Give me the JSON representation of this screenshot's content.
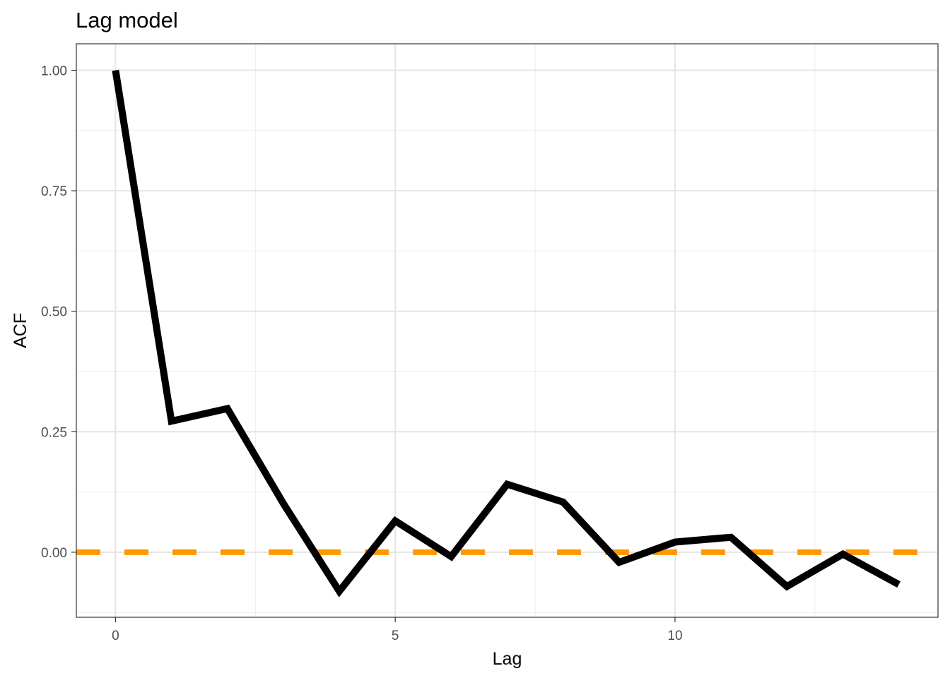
{
  "chart_data": {
    "type": "line",
    "title": "Lag model",
    "xlabel": "Lag",
    "ylabel": "ACF",
    "xlim": [
      -0.7,
      14.7
    ],
    "ylim": [
      -0.135,
      1.055
    ],
    "x_ticks": [
      0,
      5,
      10
    ],
    "x_tick_labels": [
      "0",
      "5",
      "10"
    ],
    "y_ticks": [
      0,
      0.25,
      0.5,
      0.75,
      1
    ],
    "y_tick_labels": [
      "0.00",
      "0.25",
      "0.50",
      "0.75",
      "1.00"
    ],
    "grid": true,
    "legend": "none",
    "series": [
      {
        "color": "#000000",
        "x": [
          0,
          1,
          2,
          3,
          4,
          5,
          6,
          7,
          8,
          9,
          10,
          11,
          12,
          13,
          14
        ],
        "values": [
          1.0,
          0.272,
          0.298,
          0.101,
          -0.081,
          0.065,
          -0.009,
          0.141,
          0.104,
          -0.021,
          0.021,
          0.031,
          -0.071,
          -0.004,
          -0.067
        ]
      }
    ],
    "reference_lines": [
      {
        "axis": "y",
        "value": 0,
        "color": "#FF9900",
        "style": "dashed"
      }
    ]
  }
}
